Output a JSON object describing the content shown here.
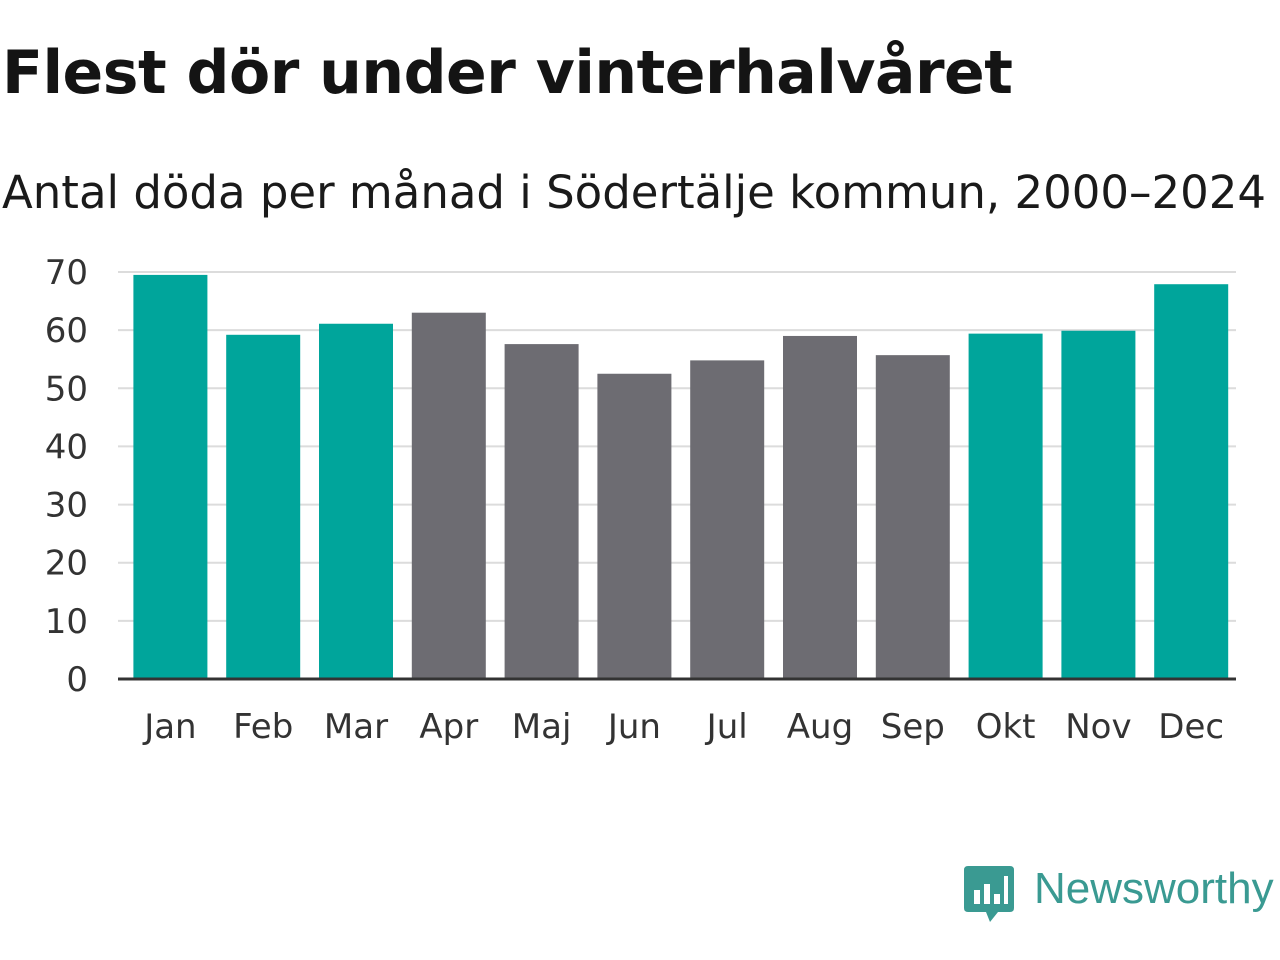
{
  "chart_data": {
    "type": "bar",
    "title": "Flest dör under vinterhalvåret",
    "subtitle": "Antal döda per månad i Södertälje kommun, 2000–2024",
    "xlabel": "",
    "ylabel": "",
    "ylim": [
      0,
      70
    ],
    "yticks": [
      "0",
      "10",
      "20",
      "30",
      "40",
      "50",
      "60",
      "70"
    ],
    "grid": true,
    "categories": [
      "Jan",
      "Feb",
      "Mar",
      "Apr",
      "Maj",
      "Jun",
      "Jul",
      "Aug",
      "Sep",
      "Okt",
      "Nov",
      "Dec"
    ],
    "values": [
      69.5,
      59.2,
      61.1,
      63.0,
      57.6,
      52.5,
      54.8,
      59.0,
      55.7,
      59.4,
      59.9,
      67.9
    ],
    "groups": [
      "winter",
      "winter",
      "winter",
      "summer",
      "summer",
      "summer",
      "summer",
      "summer",
      "summer",
      "winter",
      "winter",
      "winter"
    ],
    "colors": {
      "winter": "#00a59b",
      "summer": "#6d6c72",
      "grid": "#dcdcdc",
      "axis": "#333333"
    }
  },
  "brand": {
    "name": "Newsworthy",
    "color": "#3a9a92"
  }
}
